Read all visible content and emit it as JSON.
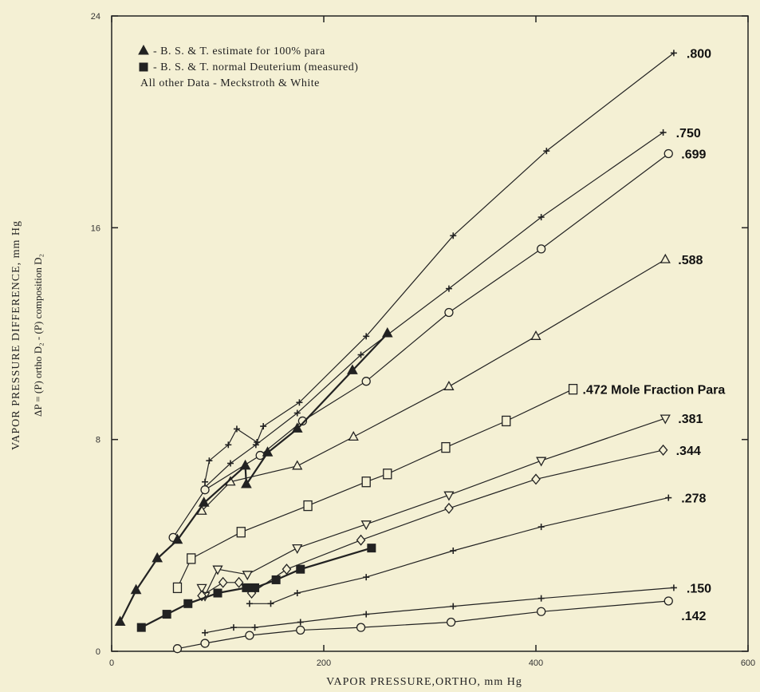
{
  "chart_data": {
    "type": "line",
    "xlabel": "VAPOR PRESSURE,ORTHO, mm Hg",
    "ylabel": "VAPOR PRESSURE DIFFERENCE, mm Hg",
    "ylabel_sub": "ΔP = (P) ortho D₂ - (P) composition D₂",
    "xlim": [
      0,
      600
    ],
    "ylim": [
      0,
      24
    ],
    "xticks": [
      {
        "v": 0,
        "t": "0"
      },
      {
        "v": 200,
        "t": "200"
      },
      {
        "v": 400,
        "t": "400"
      },
      {
        "v": 600,
        "t": "600"
      }
    ],
    "yticks": [
      {
        "v": 0,
        "t": "0"
      },
      {
        "v": 8,
        "t": "8"
      },
      {
        "v": 16,
        "t": "16"
      },
      {
        "v": 24,
        "t": "24"
      }
    ],
    "legend": [
      {
        "marker": "filled-triangle",
        "text": "- B. S. & T.  estimate for 100% para"
      },
      {
        "marker": "filled-square",
        "text": "- B. S. & T.  normal Deuterium (measured)"
      },
      {
        "marker": "none",
        "text": "All other Data - Meckstroth & White"
      }
    ],
    "series": [
      {
        "name": ".800",
        "marker": "plus",
        "label": ".800",
        "points": [
          [
            88,
            6.4
          ],
          [
            92,
            7.2
          ],
          [
            110,
            7.8
          ],
          [
            118,
            8.4
          ],
          [
            137,
            7.9
          ],
          [
            143,
            8.5
          ],
          [
            177,
            9.4
          ],
          [
            240,
            11.9
          ],
          [
            322,
            15.7
          ],
          [
            410,
            18.9
          ],
          [
            530,
            22.6
          ]
        ]
      },
      {
        "name": ".750",
        "marker": "plus",
        "label": ".750",
        "points": [
          [
            88,
            6.2
          ],
          [
            112,
            7.1
          ],
          [
            136,
            7.8
          ],
          [
            175,
            9.0
          ],
          [
            235,
            11.2
          ],
          [
            318,
            13.7
          ],
          [
            405,
            16.4
          ],
          [
            520,
            19.6
          ]
        ]
      },
      {
        "name": ".699",
        "marker": "circle",
        "label": ".699",
        "points": [
          [
            58,
            4.3
          ],
          [
            88,
            6.1
          ],
          [
            140,
            7.4
          ],
          [
            180,
            8.7
          ],
          [
            240,
            10.2
          ],
          [
            318,
            12.8
          ],
          [
            405,
            15.2
          ],
          [
            525,
            18.8
          ]
        ]
      },
      {
        "name": ".588",
        "marker": "open-triangle",
        "label": ".588",
        "points": [
          [
            85,
            5.3
          ],
          [
            112,
            6.4
          ],
          [
            175,
            7.0
          ],
          [
            228,
            8.1
          ],
          [
            318,
            10.0
          ],
          [
            400,
            11.9
          ],
          [
            522,
            14.8
          ]
        ]
      },
      {
        "name": ".472 Mole Fraction Para",
        "marker": "open-square",
        "label": ".472 Mole Fraction Para",
        "points": [
          [
            62,
            2.4
          ],
          [
            75,
            3.5
          ],
          [
            122,
            4.5
          ],
          [
            185,
            5.5
          ],
          [
            240,
            6.4
          ],
          [
            260,
            6.7
          ],
          [
            315,
            7.7
          ],
          [
            372,
            8.7
          ],
          [
            435,
            9.9
          ]
        ]
      },
      {
        "name": ".381",
        "marker": "open-down-triangle",
        "label": ".381",
        "points": [
          [
            85,
            2.4
          ],
          [
            88,
            2.1
          ],
          [
            100,
            3.1
          ],
          [
            128,
            2.9
          ],
          [
            175,
            3.9
          ],
          [
            240,
            4.8
          ],
          [
            318,
            5.9
          ],
          [
            405,
            7.2
          ],
          [
            522,
            8.8
          ]
        ]
      },
      {
        "name": ".344",
        "marker": "diamond",
        "label": ".344",
        "points": [
          [
            85,
            2.1
          ],
          [
            105,
            2.6
          ],
          [
            120,
            2.6
          ],
          [
            132,
            2.2
          ],
          [
            165,
            3.1
          ],
          [
            235,
            4.2
          ],
          [
            318,
            5.4
          ],
          [
            400,
            6.5
          ],
          [
            520,
            7.6
          ]
        ]
      },
      {
        "name": ".278",
        "marker": "plus",
        "label": ".278",
        "points": [
          [
            130,
            1.8
          ],
          [
            150,
            1.8
          ],
          [
            175,
            2.2
          ],
          [
            240,
            2.8
          ],
          [
            322,
            3.8
          ],
          [
            405,
            4.7
          ],
          [
            525,
            5.8
          ]
        ]
      },
      {
        "name": ".150",
        "marker": "plus",
        "label": ".150",
        "points": [
          [
            88,
            0.7
          ],
          [
            115,
            0.9
          ],
          [
            135,
            0.9
          ],
          [
            178,
            1.1
          ],
          [
            240,
            1.4
          ],
          [
            322,
            1.7
          ],
          [
            405,
            2.0
          ],
          [
            530,
            2.4
          ]
        ]
      },
      {
        "name": ".142",
        "marker": "circle",
        "label": ".142",
        "points": [
          [
            62,
            0.1
          ],
          [
            88,
            0.3
          ],
          [
            130,
            0.6
          ],
          [
            178,
            0.8
          ],
          [
            235,
            0.9
          ],
          [
            320,
            1.1
          ],
          [
            405,
            1.5
          ],
          [
            525,
            1.9
          ]
        ]
      },
      {
        "name": "B. S. & T. estimate for 100% para",
        "marker": "filled-triangle",
        "label": "",
        "points": [
          [
            8,
            1.1
          ],
          [
            23,
            2.3
          ],
          [
            43,
            3.5
          ],
          [
            62,
            4.2
          ],
          [
            87,
            5.6
          ],
          [
            126,
            7.0
          ],
          [
            127,
            6.3
          ],
          [
            147,
            7.5
          ],
          [
            175,
            8.4
          ],
          [
            227,
            10.6
          ],
          [
            260,
            12.0
          ]
        ]
      },
      {
        "name": "B. S. & T. normal Deuterium (measured)",
        "marker": "filled-square",
        "label": "",
        "points": [
          [
            28,
            0.9
          ],
          [
            52,
            1.4
          ],
          [
            72,
            1.8
          ],
          [
            100,
            2.2
          ],
          [
            127,
            2.4
          ],
          [
            135,
            2.4
          ],
          [
            155,
            2.7
          ],
          [
            178,
            3.1
          ],
          [
            245,
            3.9
          ]
        ]
      }
    ]
  }
}
